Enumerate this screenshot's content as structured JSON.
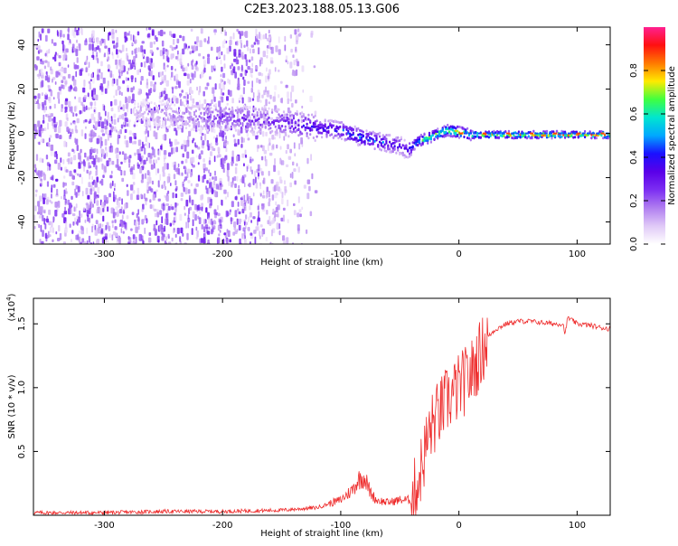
{
  "title": "C2E3.2023.188.05.13.G06",
  "colors": {
    "axis": "#000000",
    "snr_line": "#ee2c2c",
    "colormap": [
      "#ffffff",
      "#e0c9f7",
      "#b07ef0",
      "#7c2ef2",
      "#5a00e8",
      "#1a10ff",
      "#00a8ff",
      "#00e5d0",
      "#40ff40",
      "#ffea00",
      "#ff7a00",
      "#ff1010",
      "#ff2090"
    ]
  },
  "chart_data": [
    {
      "type": "heatmap",
      "xlabel": "Height of straight line (km)",
      "ylabel": "Frequency (Hz)",
      "xlim": [
        -360,
        128
      ],
      "ylim": [
        -50,
        48
      ],
      "x_ticks": [
        -300,
        -200,
        -100,
        0,
        100
      ],
      "y_ticks": [
        -40,
        -20,
        0,
        20,
        40
      ],
      "colorbar": {
        "label": "Normalized spectral amplitude",
        "range": [
          0.0,
          1.0
        ],
        "ticks": [
          "0.0",
          "0.2",
          "0.4",
          "0.6",
          "0.8"
        ]
      },
      "ridge": {
        "heights_km": [
          -270,
          -250,
          -230,
          -200,
          -180,
          -160,
          -140,
          -120,
          -100,
          -90,
          -80,
          -70,
          -60,
          -50,
          -45,
          -40,
          -35,
          -30,
          -20,
          -10,
          0,
          10,
          20,
          40,
          60,
          80,
          100,
          128
        ],
        "center_freq_hz": [
          10,
          9,
          8,
          8,
          7,
          6,
          5,
          3,
          2,
          0,
          -2,
          -3,
          -4,
          -5,
          -7,
          -5,
          -3,
          -2,
          0,
          2,
          1,
          0,
          0,
          0,
          0,
          0,
          0,
          0
        ],
        "peak_amplitude": [
          0.12,
          0.15,
          0.2,
          0.28,
          0.3,
          0.33,
          0.38,
          0.42,
          0.45,
          0.5,
          0.5,
          0.48,
          0.45,
          0.4,
          0.35,
          0.5,
          0.6,
          0.7,
          0.75,
          0.8,
          0.85,
          0.88,
          0.9,
          0.9,
          0.9,
          0.92,
          0.9,
          0.9
        ]
      }
    },
    {
      "type": "line",
      "xlabel": "Height of straight line (km)",
      "ylabel": "SNR (10 * v/v)",
      "scale_label": "(x10",
      "scale_exp": "4",
      "scale_close": ")",
      "xlim": [
        -360,
        128
      ],
      "ylim": [
        0,
        1.7
      ],
      "x_ticks": [
        -300,
        -200,
        -100,
        0,
        100
      ],
      "y_ticks": [
        "0.5",
        "1.0",
        "1.5"
      ],
      "series": [
        {
          "x": [
            -360,
            -300,
            -250,
            -200,
            -150,
            -120,
            -100,
            -90,
            -85,
            -80,
            -75,
            -70,
            -60,
            -50,
            -40,
            -35,
            -30,
            -25,
            -20,
            -10,
            0,
            10,
            20,
            25,
            30,
            40,
            50,
            60,
            70,
            80,
            88,
            90,
            92,
            100,
            110,
            120,
            128
          ],
          "y": [
            0.02,
            0.02,
            0.03,
            0.03,
            0.04,
            0.06,
            0.12,
            0.2,
            0.28,
            0.3,
            0.18,
            0.12,
            0.1,
            0.12,
            0.12,
            0.25,
            0.45,
            0.65,
            0.75,
            0.9,
            1.0,
            1.1,
            1.3,
            1.4,
            1.45,
            1.5,
            1.52,
            1.52,
            1.51,
            1.5,
            1.5,
            1.42,
            1.55,
            1.5,
            1.49,
            1.47,
            1.46
          ]
        }
      ]
    }
  ]
}
